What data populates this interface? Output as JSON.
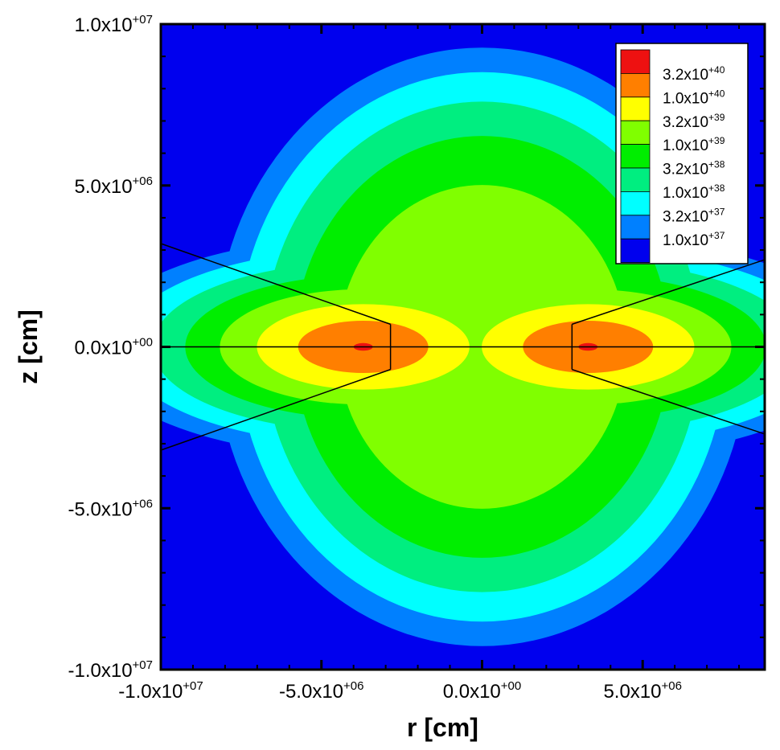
{
  "chart_data": {
    "type": "heatmap",
    "xlabel": "r [cm]",
    "ylabel": "z [cm]",
    "xlim": [
      -10000000,
      8800000
    ],
    "ylim": [
      -10000000,
      10000000
    ],
    "x_ticks": [
      {
        "value": -10000000,
        "mantissa": "-1.0x10",
        "exp": "+07"
      },
      {
        "value": -5000000,
        "mantissa": "-5.0x10",
        "exp": "+06"
      },
      {
        "value": 0,
        "mantissa": "0.0x10",
        "exp": "+00"
      },
      {
        "value": 5000000,
        "mantissa": "5.0x10",
        "exp": "+06"
      }
    ],
    "y_ticks": [
      {
        "value": 10000000,
        "mantissa": "1.0x10",
        "exp": "+07"
      },
      {
        "value": 5000000,
        "mantissa": "5.0x10",
        "exp": "+06"
      },
      {
        "value": 0,
        "mantissa": "0.0x10",
        "exp": "+00"
      },
      {
        "value": -5000000,
        "mantissa": "-5.0x10",
        "exp": "+06"
      },
      {
        "value": -10000000,
        "mantissa": "-1.0x10",
        "exp": "+07"
      }
    ],
    "legend_position": "top-right",
    "contour_levels": [
      {
        "value": 3.2e+40,
        "mantissa": "3.2x10",
        "exp": "+40",
        "color": "#ee1111"
      },
      {
        "value": 1e+40,
        "mantissa": "1.0x10",
        "exp": "+40",
        "color": "#ff7f00"
      },
      {
        "value": 3.2e+39,
        "mantissa": "3.2x10",
        "exp": "+39",
        "color": "#ffff00"
      },
      {
        "value": 1e+39,
        "mantissa": "1.0x10",
        "exp": "+39",
        "color": "#80ff00"
      },
      {
        "value": 3.2e+38,
        "mantissa": "3.2x10",
        "exp": "+38",
        "color": "#00ee00"
      },
      {
        "value": 1e+38,
        "mantissa": "1.0x10",
        "exp": "+38",
        "color": "#00ee80"
      },
      {
        "value": 3.2e+37,
        "mantissa": "3.2x10",
        "exp": "+37",
        "color": "#00ffff"
      },
      {
        "value": 1e+37,
        "mantissa": "1.0x10",
        "exp": "+37",
        "color": "#0080ff"
      }
    ],
    "background_color": "#0000ee",
    "sources": [
      {
        "r": -3700000,
        "z": 0,
        "rx": 8500000,
        "rz": 3400000
      },
      {
        "r": 3300000,
        "z": 0,
        "rx": 8500000,
        "rz": 3400000
      }
    ],
    "wedges": [
      {
        "side": "left",
        "tip_r": -2850000,
        "tip_dz": 700000,
        "outer_r": -10000000,
        "outer_z": 3200000
      },
      {
        "side": "right",
        "tip_r": 2800000,
        "tip_dz": 700000,
        "outer_r": 8800000,
        "outer_z": 2700000
      }
    ]
  }
}
